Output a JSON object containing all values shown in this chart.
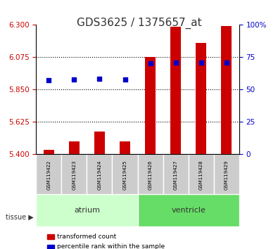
{
  "title": "GDS3625 / 1375657_at",
  "samples": [
    "GSM119422",
    "GSM119423",
    "GSM119424",
    "GSM119425",
    "GSM119426",
    "GSM119427",
    "GSM119428",
    "GSM119429"
  ],
  "tissue_groups": {
    "atrium": [
      0,
      1,
      2,
      3
    ],
    "ventricle": [
      4,
      5,
      6,
      7
    ]
  },
  "transformed_count": [
    5.43,
    5.49,
    5.56,
    5.49,
    6.075,
    6.285,
    6.175,
    6.29
  ],
  "percentile_rank": [
    5.915,
    5.92,
    5.925,
    5.922,
    6.035,
    6.04,
    6.038,
    6.04
  ],
  "y_min": 5.4,
  "y_max": 6.3,
  "y_ticks_left": [
    5.4,
    5.625,
    5.85,
    6.075,
    6.3
  ],
  "y_ticks_right": [
    0,
    25,
    50,
    75,
    100
  ],
  "bar_color": "#cc0000",
  "dot_color": "#0000cc",
  "bar_base": 5.4,
  "legend_labels": [
    "transformed count",
    "percentile rank within the sample"
  ],
  "legend_colors": [
    "#cc0000",
    "#0000cc"
  ],
  "atrium_color": "#ccffcc",
  "ventricle_color": "#66dd66",
  "xlabel_area_color": "#cccccc",
  "tissue_label_color": "#333333",
  "grid_color": "#000000",
  "title_color": "#333333"
}
